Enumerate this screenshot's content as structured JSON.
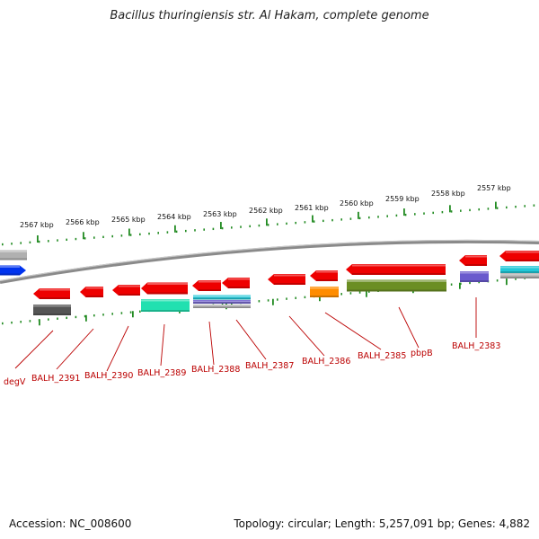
{
  "title": "Bacillus thuringiensis str. Al Hakam, complete genome",
  "footer": {
    "accession": "Accession: NC_008600",
    "summary": "Topology: circular; Length: 5,257,091 bp; Genes: 4,882"
  },
  "scale": {
    "labels": [
      "2567 kbp",
      "2566 kbp",
      "2565 kbp",
      "2564 kbp",
      "2563 kbp",
      "2562 kbp",
      "2561 kbp",
      "2560 kbp",
      "2559 kbp",
      "2558 kbp",
      "2557 kbp"
    ]
  },
  "colors": {
    "cds": "#ee0000",
    "backbone": "#8a8a8a",
    "tick": "#228b22",
    "label": "#bb0000",
    "gray_feature": "#555555",
    "light_gray_feature": "#b0b0b0",
    "blue_feature": "#0033ee",
    "teal_feature": "#22e0b0",
    "cyan_feature": "#22c8d8",
    "orange_feature": "#ff8c00",
    "olive_feature": "#6b8e23",
    "purple_feature": "#6a5acd"
  },
  "genes": [
    "degV",
    "BALH_2391",
    "BALH_2390",
    "BALH_2389",
    "BALH_2388",
    "BALH_2387",
    "BALH_2386",
    "BALH_2385",
    "pbpB",
    "BALH_2383"
  ]
}
